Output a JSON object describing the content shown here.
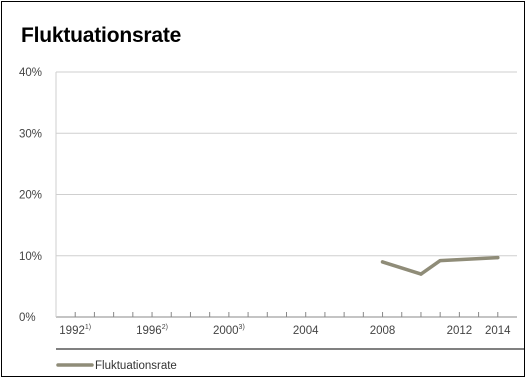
{
  "chart_data": {
    "type": "line",
    "title": "Fluktuationsrate",
    "xlabel": "",
    "ylabel": "",
    "xlim": [
      1991,
      2015
    ],
    "ylim": [
      0,
      40
    ],
    "grid": true,
    "legend_position": "bottom-left",
    "x_ticks": [
      {
        "value": 1992,
        "label": "1992",
        "note": "1)"
      },
      {
        "value": 1996,
        "label": "1996",
        "note": "2)"
      },
      {
        "value": 2000,
        "label": "2000",
        "note": "3)"
      },
      {
        "value": 2004,
        "label": "2004",
        "note": ""
      },
      {
        "value": 2008,
        "label": "2008",
        "note": ""
      },
      {
        "value": 2012,
        "label": "2012",
        "note": ""
      },
      {
        "value": 2014,
        "label": "2014",
        "note": ""
      }
    ],
    "y_ticks": [
      {
        "value": 0,
        "label": "0%"
      },
      {
        "value": 10,
        "label": "10%"
      },
      {
        "value": 20,
        "label": "20%"
      },
      {
        "value": 30,
        "label": "30%"
      },
      {
        "value": 40,
        "label": "40%"
      }
    ],
    "series": [
      {
        "name": "Fluktuationsrate",
        "color": "#8f8c78",
        "points": [
          {
            "x": 2008,
            "y": 9.0
          },
          {
            "x": 2010,
            "y": 7.0
          },
          {
            "x": 2011,
            "y": 9.2
          },
          {
            "x": 2014,
            "y": 9.7
          }
        ]
      }
    ]
  }
}
